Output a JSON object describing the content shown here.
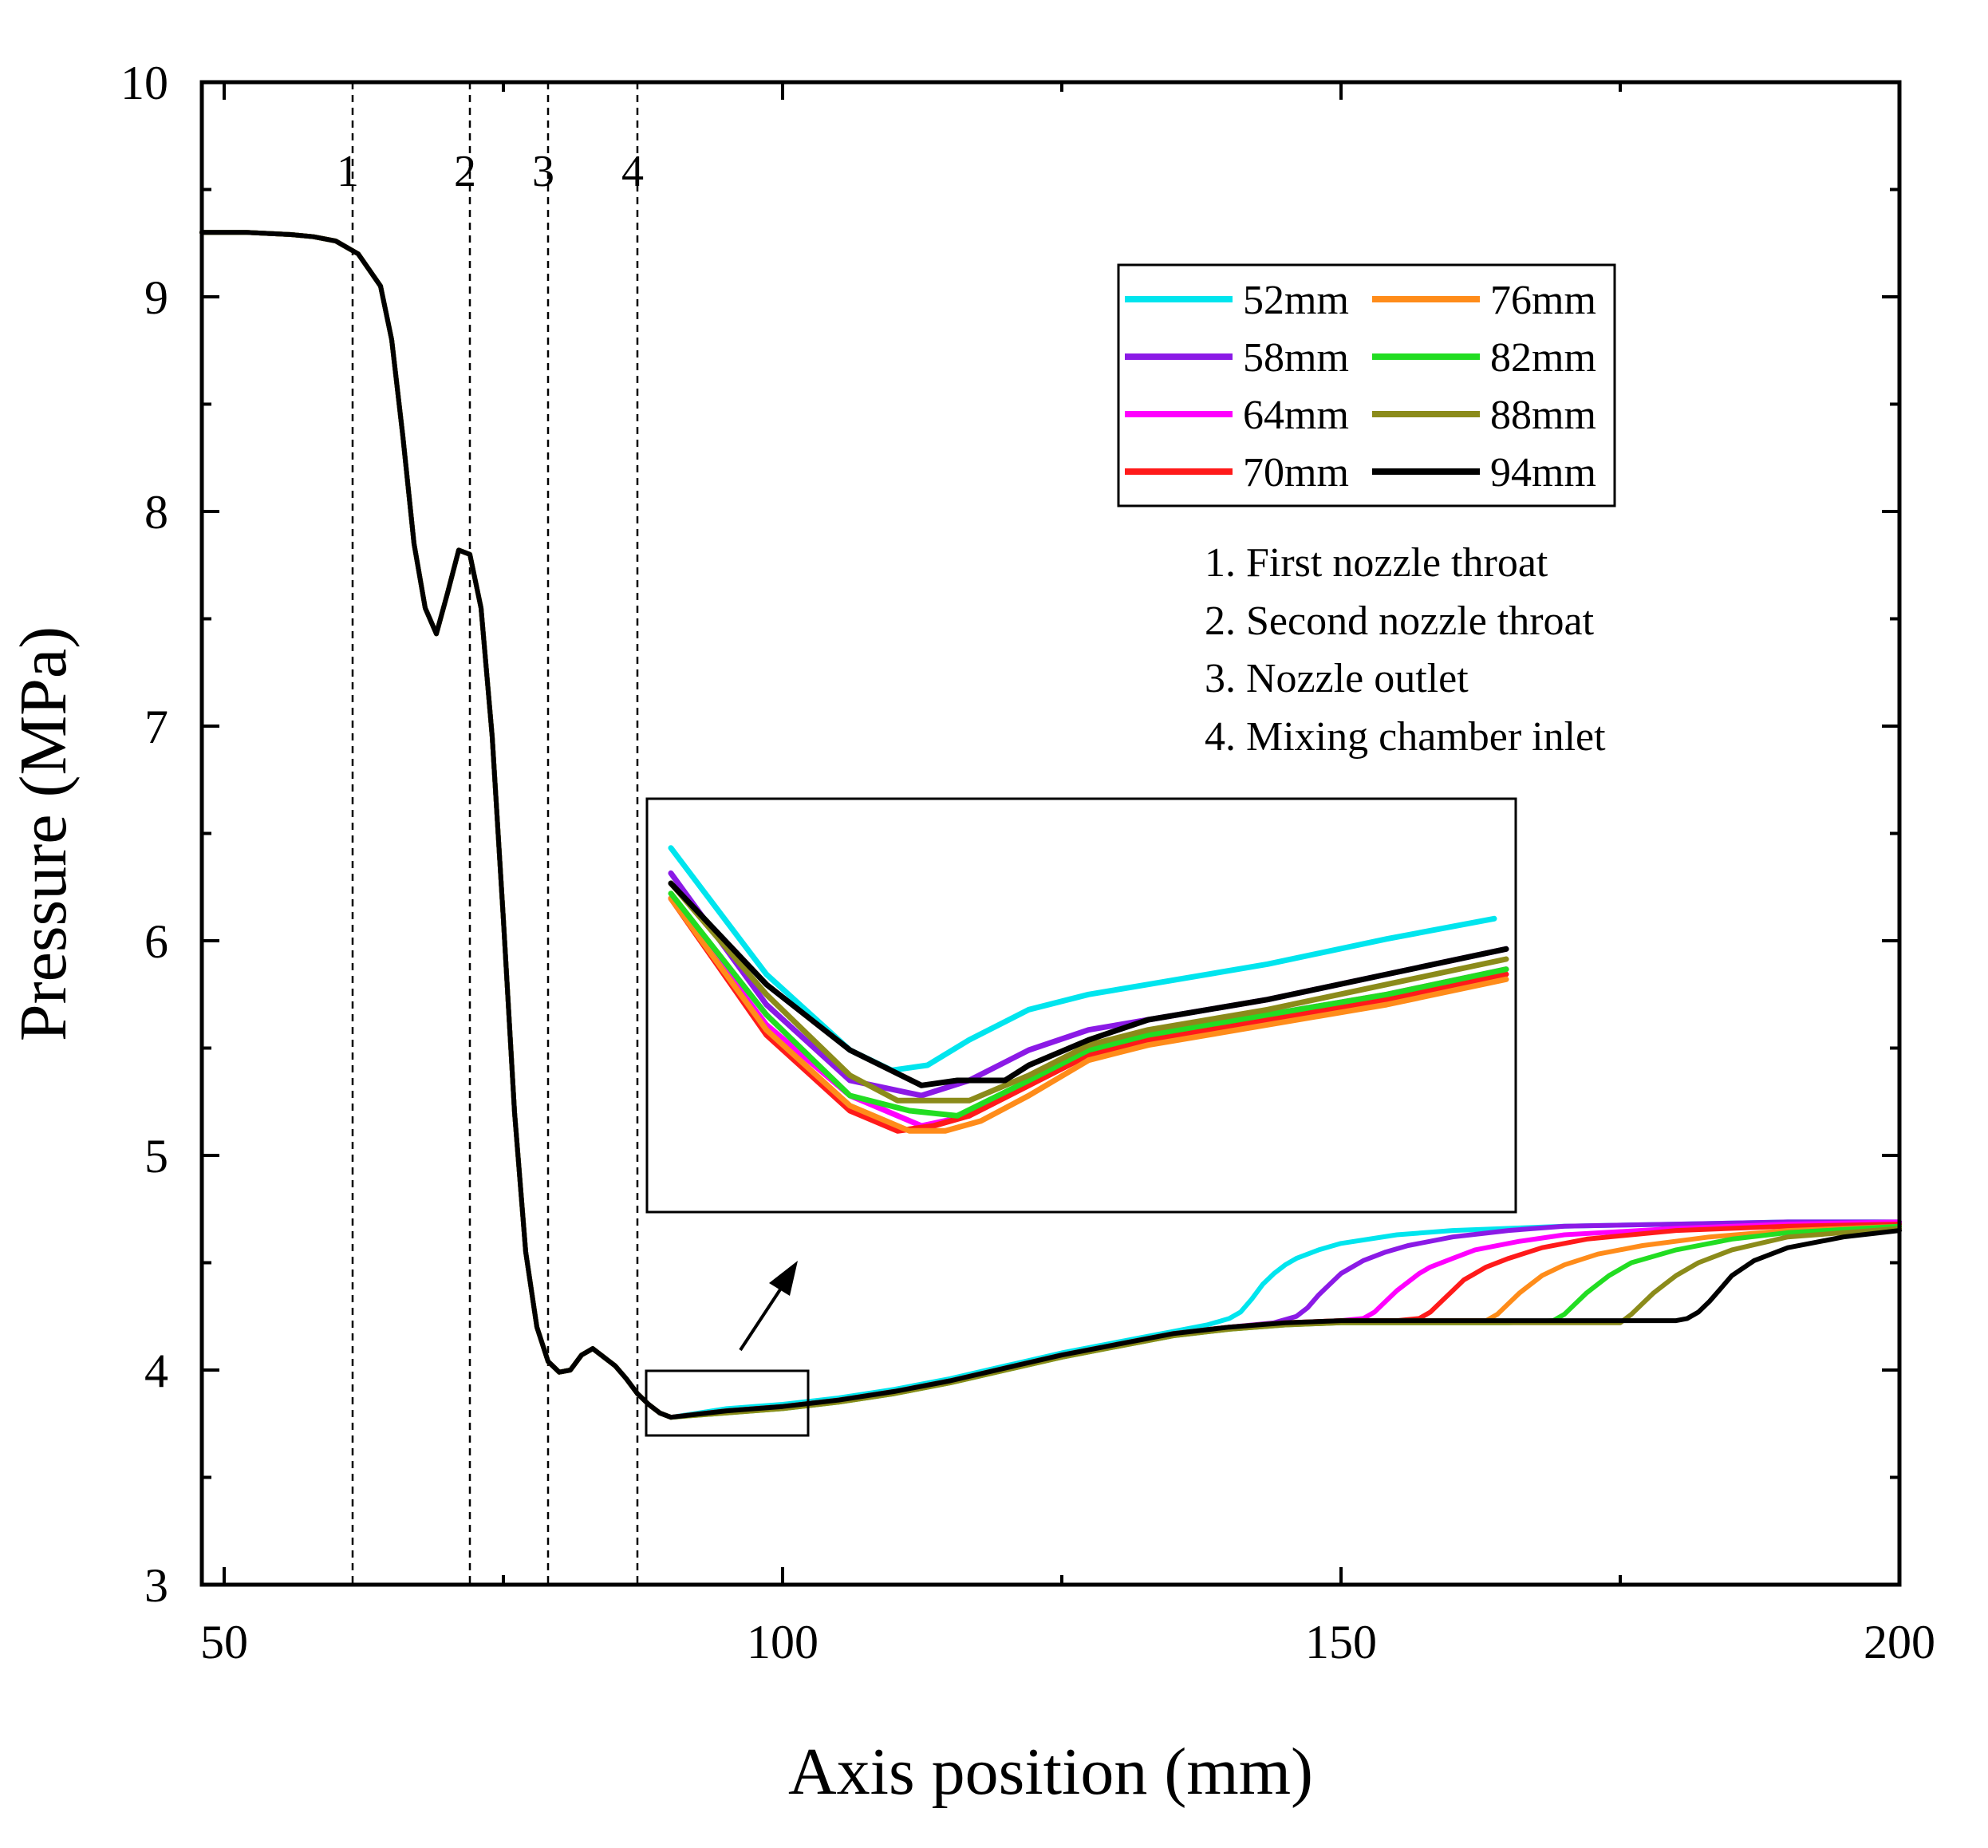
{
  "chart_data": {
    "type": "line",
    "title": "",
    "xlabel": "Axis position (mm)",
    "ylabel": "Pressure (MPa)",
    "xlim": [
      48,
      200
    ],
    "ylim": [
      3,
      10
    ],
    "x_ticks": [
      50,
      100,
      150,
      200
    ],
    "y_ticks": [
      3,
      4,
      5,
      6,
      7,
      8,
      9,
      10
    ],
    "x_minor_step": 25,
    "y_minor_step": 0.5,
    "grid": false,
    "legend_position": "top-right",
    "marker_lines": [
      {
        "x": 61.5,
        "label": "1"
      },
      {
        "x": 72,
        "label": "2"
      },
      {
        "x": 79,
        "label": "3"
      },
      {
        "x": 87,
        "label": "4"
      }
    ],
    "notes": [
      "1. First nozzle throat",
      "2. Second nozzle throat",
      "3. Nozzle outlet",
      "4. Mixing chamber inlet"
    ],
    "common_curve": {
      "x": [
        48,
        52,
        56,
        58,
        60,
        62,
        64,
        65,
        66,
        67,
        68,
        69,
        70,
        71,
        72,
        73,
        74,
        75,
        76,
        77,
        78,
        79,
        80,
        81,
        82,
        83,
        84,
        85,
        86,
        87,
        88,
        89,
        90
      ],
      "y": [
        9.3,
        9.3,
        9.29,
        9.28,
        9.26,
        9.2,
        9.05,
        8.8,
        8.35,
        7.85,
        7.55,
        7.43,
        7.62,
        7.82,
        7.8,
        7.55,
        6.95,
        6.1,
        5.2,
        4.55,
        4.2,
        4.04,
        3.99,
        4.0,
        4.07,
        4.1,
        4.06,
        4.02,
        3.96,
        3.89,
        3.84,
        3.8,
        3.78
      ]
    },
    "series": [
      {
        "name": "52mm",
        "color": "#00e5ee",
        "x": [
          90,
          95,
          100,
          105,
          110,
          115,
          120,
          125,
          130,
          135,
          138,
          140,
          141,
          142,
          143,
          144,
          145,
          146,
          148,
          150,
          155,
          160,
          170,
          180,
          190,
          200
        ],
        "y": [
          3.79,
          3.82,
          3.84,
          3.87,
          3.91,
          3.96,
          4.02,
          4.08,
          4.13,
          4.18,
          4.21,
          4.24,
          4.27,
          4.33,
          4.4,
          4.45,
          4.49,
          4.52,
          4.56,
          4.59,
          4.63,
          4.65,
          4.67,
          4.68,
          4.69,
          4.69
        ]
      },
      {
        "name": "58mm",
        "color": "#8b1ae6",
        "x": [
          90,
          95,
          100,
          105,
          110,
          115,
          120,
          125,
          130,
          135,
          140,
          144,
          146,
          147,
          148,
          149,
          150,
          151,
          152,
          154,
          156,
          160,
          165,
          170,
          180,
          190,
          200
        ],
        "y": [
          3.79,
          3.81,
          3.83,
          3.86,
          3.9,
          3.95,
          4.01,
          4.07,
          4.12,
          4.17,
          4.2,
          4.22,
          4.25,
          4.29,
          4.35,
          4.4,
          4.45,
          4.48,
          4.51,
          4.55,
          4.58,
          4.62,
          4.65,
          4.67,
          4.68,
          4.69,
          4.69
        ]
      },
      {
        "name": "64mm",
        "color": "#ff00ff",
        "x": [
          90,
          95,
          100,
          105,
          110,
          115,
          120,
          125,
          130,
          135,
          140,
          145,
          150,
          152,
          153,
          154,
          155,
          156,
          157,
          158,
          160,
          162,
          166,
          170,
          180,
          190,
          200
        ],
        "y": [
          3.78,
          3.81,
          3.83,
          3.86,
          3.9,
          3.95,
          4.01,
          4.07,
          4.12,
          4.17,
          4.2,
          4.22,
          4.23,
          4.24,
          4.27,
          4.32,
          4.37,
          4.41,
          4.45,
          4.48,
          4.52,
          4.56,
          4.6,
          4.63,
          4.66,
          4.68,
          4.69
        ]
      },
      {
        "name": "70mm",
        "color": "#ff1a1a",
        "x": [
          90,
          95,
          100,
          105,
          110,
          115,
          120,
          125,
          130,
          135,
          140,
          145,
          150,
          155,
          157,
          158,
          159,
          160,
          161,
          162,
          163,
          165,
          168,
          172,
          180,
          190,
          200
        ],
        "y": [
          3.78,
          3.81,
          3.83,
          3.86,
          3.9,
          3.95,
          4.01,
          4.07,
          4.12,
          4.17,
          4.2,
          4.22,
          4.23,
          4.23,
          4.24,
          4.27,
          4.32,
          4.37,
          4.42,
          4.45,
          4.48,
          4.52,
          4.57,
          4.61,
          4.65,
          4.67,
          4.68
        ]
      },
      {
        "name": "76mm",
        "color": "#ff8c1a",
        "x": [
          90,
          95,
          100,
          105,
          110,
          115,
          120,
          125,
          130,
          135,
          140,
          145,
          150,
          155,
          160,
          163,
          164,
          165,
          166,
          167,
          168,
          170,
          173,
          177,
          183,
          190,
          200
        ],
        "y": [
          3.78,
          3.81,
          3.83,
          3.86,
          3.9,
          3.95,
          4.01,
          4.07,
          4.12,
          4.17,
          4.2,
          4.22,
          4.23,
          4.23,
          4.23,
          4.23,
          4.26,
          4.31,
          4.36,
          4.4,
          4.44,
          4.49,
          4.54,
          4.58,
          4.62,
          4.65,
          4.67
        ]
      },
      {
        "name": "82mm",
        "color": "#22dd22",
        "x": [
          90,
          95,
          100,
          105,
          110,
          115,
          120,
          125,
          130,
          135,
          140,
          145,
          150,
          155,
          160,
          165,
          169,
          170,
          171,
          172,
          173,
          174,
          176,
          180,
          185,
          190,
          200
        ],
        "y": [
          3.78,
          3.8,
          3.82,
          3.85,
          3.89,
          3.94,
          4.0,
          4.06,
          4.11,
          4.16,
          4.19,
          4.21,
          4.22,
          4.22,
          4.22,
          4.22,
          4.23,
          4.26,
          4.31,
          4.36,
          4.4,
          4.44,
          4.5,
          4.56,
          4.61,
          4.64,
          4.67
        ]
      },
      {
        "name": "88mm",
        "color": "#8b8b1a",
        "x": [
          90,
          95,
          100,
          105,
          110,
          115,
          120,
          125,
          130,
          135,
          140,
          145,
          150,
          155,
          160,
          165,
          170,
          175,
          176,
          177,
          178,
          179,
          180,
          182,
          185,
          190,
          200
        ],
        "y": [
          3.77,
          3.8,
          3.82,
          3.85,
          3.89,
          3.94,
          4.0,
          4.06,
          4.11,
          4.16,
          4.19,
          4.21,
          4.22,
          4.22,
          4.22,
          4.22,
          4.22,
          4.22,
          4.26,
          4.31,
          4.36,
          4.4,
          4.44,
          4.5,
          4.56,
          4.62,
          4.66
        ]
      },
      {
        "name": "94mm",
        "color": "#000000",
        "x": [
          90,
          95,
          100,
          105,
          110,
          115,
          120,
          125,
          130,
          135,
          140,
          145,
          150,
          155,
          160,
          165,
          170,
          175,
          180,
          181,
          182,
          183,
          184,
          185,
          187,
          190,
          195,
          200
        ],
        "y": [
          3.78,
          3.81,
          3.83,
          3.86,
          3.9,
          3.95,
          4.01,
          4.07,
          4.12,
          4.17,
          4.2,
          4.22,
          4.23,
          4.23,
          4.23,
          4.23,
          4.23,
          4.23,
          4.23,
          4.24,
          4.27,
          4.32,
          4.38,
          4.44,
          4.51,
          4.57,
          4.62,
          4.65
        ]
      }
    ],
    "inset": {
      "source_xlim": [
        87.5,
        102
      ],
      "source_ylim": [
        3.7,
        4.0
      ],
      "xlim": [
        88,
        95
      ],
      "ylim": [
        3.765,
        3.84
      ],
      "series": [
        {
          "name": "52mm",
          "color": "#00e5ee",
          "x": [
            88.0,
            88.8,
            89.5,
            89.85,
            90.15,
            90.5,
            91.0,
            91.5,
            92.0,
            93.0,
            94.0,
            94.9
          ],
          "y": [
            3.835,
            3.81,
            3.795,
            3.791,
            3.792,
            3.797,
            3.803,
            3.806,
            3.808,
            3.812,
            3.817,
            3.821
          ]
        },
        {
          "name": "58mm",
          "color": "#8b1ae6",
          "x": [
            88.0,
            88.8,
            89.5,
            90.1,
            90.5,
            91.0,
            91.5,
            92.0,
            93.0,
            94.0,
            95.0
          ],
          "y": [
            3.83,
            3.804,
            3.789,
            3.786,
            3.789,
            3.795,
            3.799,
            3.801,
            3.805,
            3.81,
            3.815
          ]
        },
        {
          "name": "64mm",
          "color": "#ff00ff",
          "x": [
            88.0,
            88.8,
            89.5,
            90.1,
            90.5,
            91.0,
            91.5,
            92.0,
            93.0,
            94.0,
            95.0
          ],
          "y": [
            3.825,
            3.8,
            3.786,
            3.78,
            3.782,
            3.789,
            3.795,
            3.798,
            3.802,
            3.806,
            3.811
          ]
        },
        {
          "name": "70mm",
          "color": "#ff1a1a",
          "x": [
            88.0,
            88.8,
            89.5,
            89.9,
            90.2,
            90.5,
            91.0,
            91.5,
            92.0,
            93.0,
            94.0,
            95.0
          ],
          "y": [
            3.825,
            3.798,
            3.783,
            3.779,
            3.78,
            3.782,
            3.788,
            3.794,
            3.797,
            3.801,
            3.805,
            3.81
          ]
        },
        {
          "name": "76mm",
          "color": "#ff8c1a",
          "x": [
            88.0,
            88.8,
            89.5,
            90.0,
            90.3,
            90.6,
            91.0,
            91.5,
            92.0,
            93.0,
            94.0,
            95.0
          ],
          "y": [
            3.825,
            3.799,
            3.784,
            3.779,
            3.779,
            3.781,
            3.786,
            3.793,
            3.796,
            3.8,
            3.804,
            3.809
          ]
        },
        {
          "name": "82mm",
          "color": "#22dd22",
          "x": [
            88.0,
            88.8,
            89.5,
            90.0,
            90.4,
            91.0,
            91.5,
            92.0,
            93.0,
            94.0,
            95.0
          ],
          "y": [
            3.826,
            3.802,
            3.786,
            3.783,
            3.782,
            3.789,
            3.795,
            3.798,
            3.802,
            3.806,
            3.811
          ]
        },
        {
          "name": "88mm",
          "color": "#8b8b1a",
          "x": [
            88.0,
            88.8,
            89.5,
            89.9,
            90.5,
            91.0,
            91.5,
            92.0,
            93.0,
            94.0,
            95.0
          ],
          "y": [
            3.828,
            3.806,
            3.79,
            3.785,
            3.785,
            3.79,
            3.796,
            3.799,
            3.803,
            3.808,
            3.813
          ]
        },
        {
          "name": "94mm",
          "color": "#000000",
          "x": [
            88.0,
            88.8,
            89.5,
            90.1,
            90.4,
            90.8,
            91.0,
            91.5,
            92.0,
            93.0,
            94.0,
            95.0
          ],
          "y": [
            3.828,
            3.808,
            3.795,
            3.788,
            3.789,
            3.789,
            3.792,
            3.797,
            3.801,
            3.805,
            3.81,
            3.815
          ]
        }
      ]
    }
  }
}
